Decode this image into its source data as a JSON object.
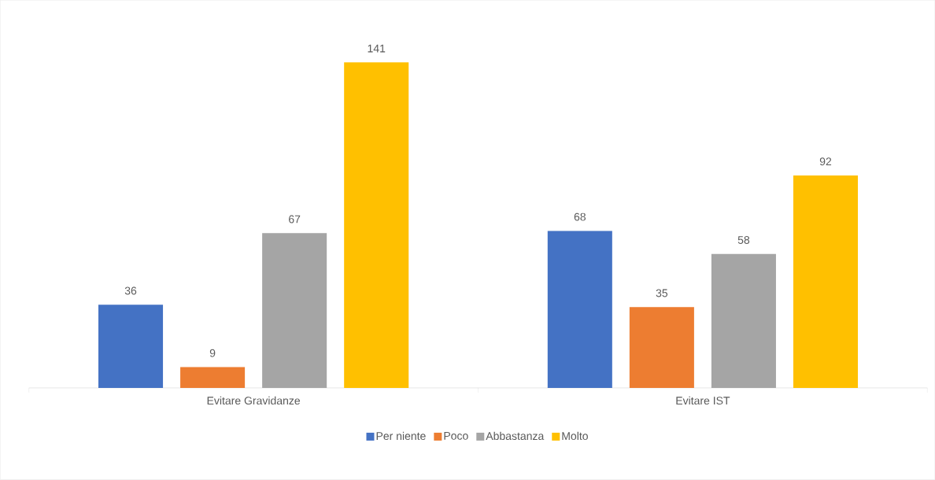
{
  "chart_data": {
    "type": "bar",
    "categories": [
      "Evitare Gravidanze",
      "Evitare IST"
    ],
    "series": [
      {
        "name": "Per niente",
        "color": "#4472c4",
        "values": [
          36,
          68
        ]
      },
      {
        "name": "Poco",
        "color": "#ed7d31",
        "values": [
          9,
          35
        ]
      },
      {
        "name": "Abbastanza",
        "color": "#a5a5a5",
        "values": [
          67,
          58
        ]
      },
      {
        "name": "Molto",
        "color": "#ffc000",
        "values": [
          141,
          92
        ]
      }
    ],
    "data_labels": true,
    "legend": "bottom"
  }
}
